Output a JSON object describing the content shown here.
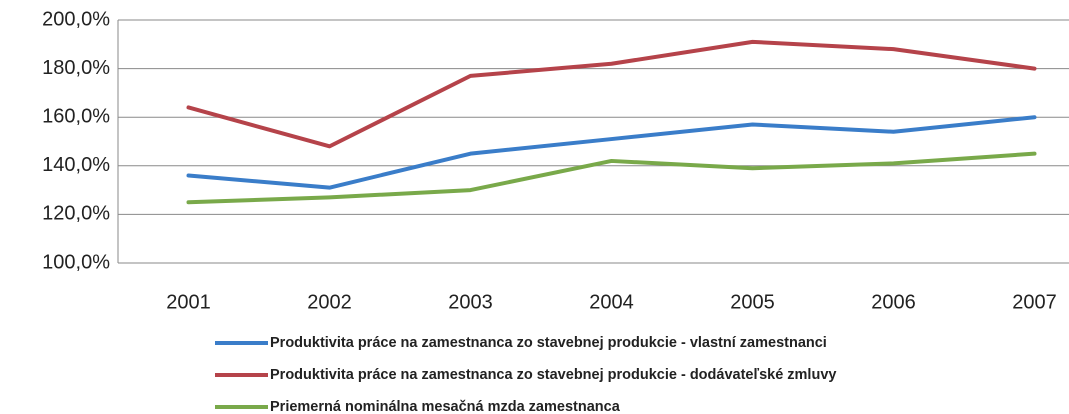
{
  "chart_data": {
    "type": "line",
    "categories": [
      "2001",
      "2002",
      "2003",
      "2004",
      "2005",
      "2006",
      "2007"
    ],
    "series": [
      {
        "name": "Produktivita práce na zamestnanca zo stavebnej produkcie - vlastní zamestnanci",
        "color": "#3a7dc9",
        "values": [
          136,
          131,
          145,
          151,
          157,
          154,
          160
        ]
      },
      {
        "name": "Produktivita práce na zamestnanca zo stavebnej produkcie - dodávateľské zmluvy",
        "color": "#b5434a",
        "values": [
          164,
          148,
          177,
          182,
          191,
          188,
          180
        ]
      },
      {
        "name": "Priemerná nominálna mesačná mzda zamestnanca",
        "color": "#79a94a",
        "values": [
          125,
          127,
          130,
          142,
          139,
          141,
          145
        ]
      }
    ],
    "ylim": [
      100,
      200
    ],
    "yticks": [
      {
        "value": 100,
        "label": "100,0%"
      },
      {
        "value": 120,
        "label": "120,0%"
      },
      {
        "value": 140,
        "label": "140,0%"
      },
      {
        "value": 160,
        "label": "160,0%"
      },
      {
        "value": 180,
        "label": "180,0%"
      },
      {
        "value": 200,
        "label": "200,0%"
      }
    ],
    "grid": true
  }
}
